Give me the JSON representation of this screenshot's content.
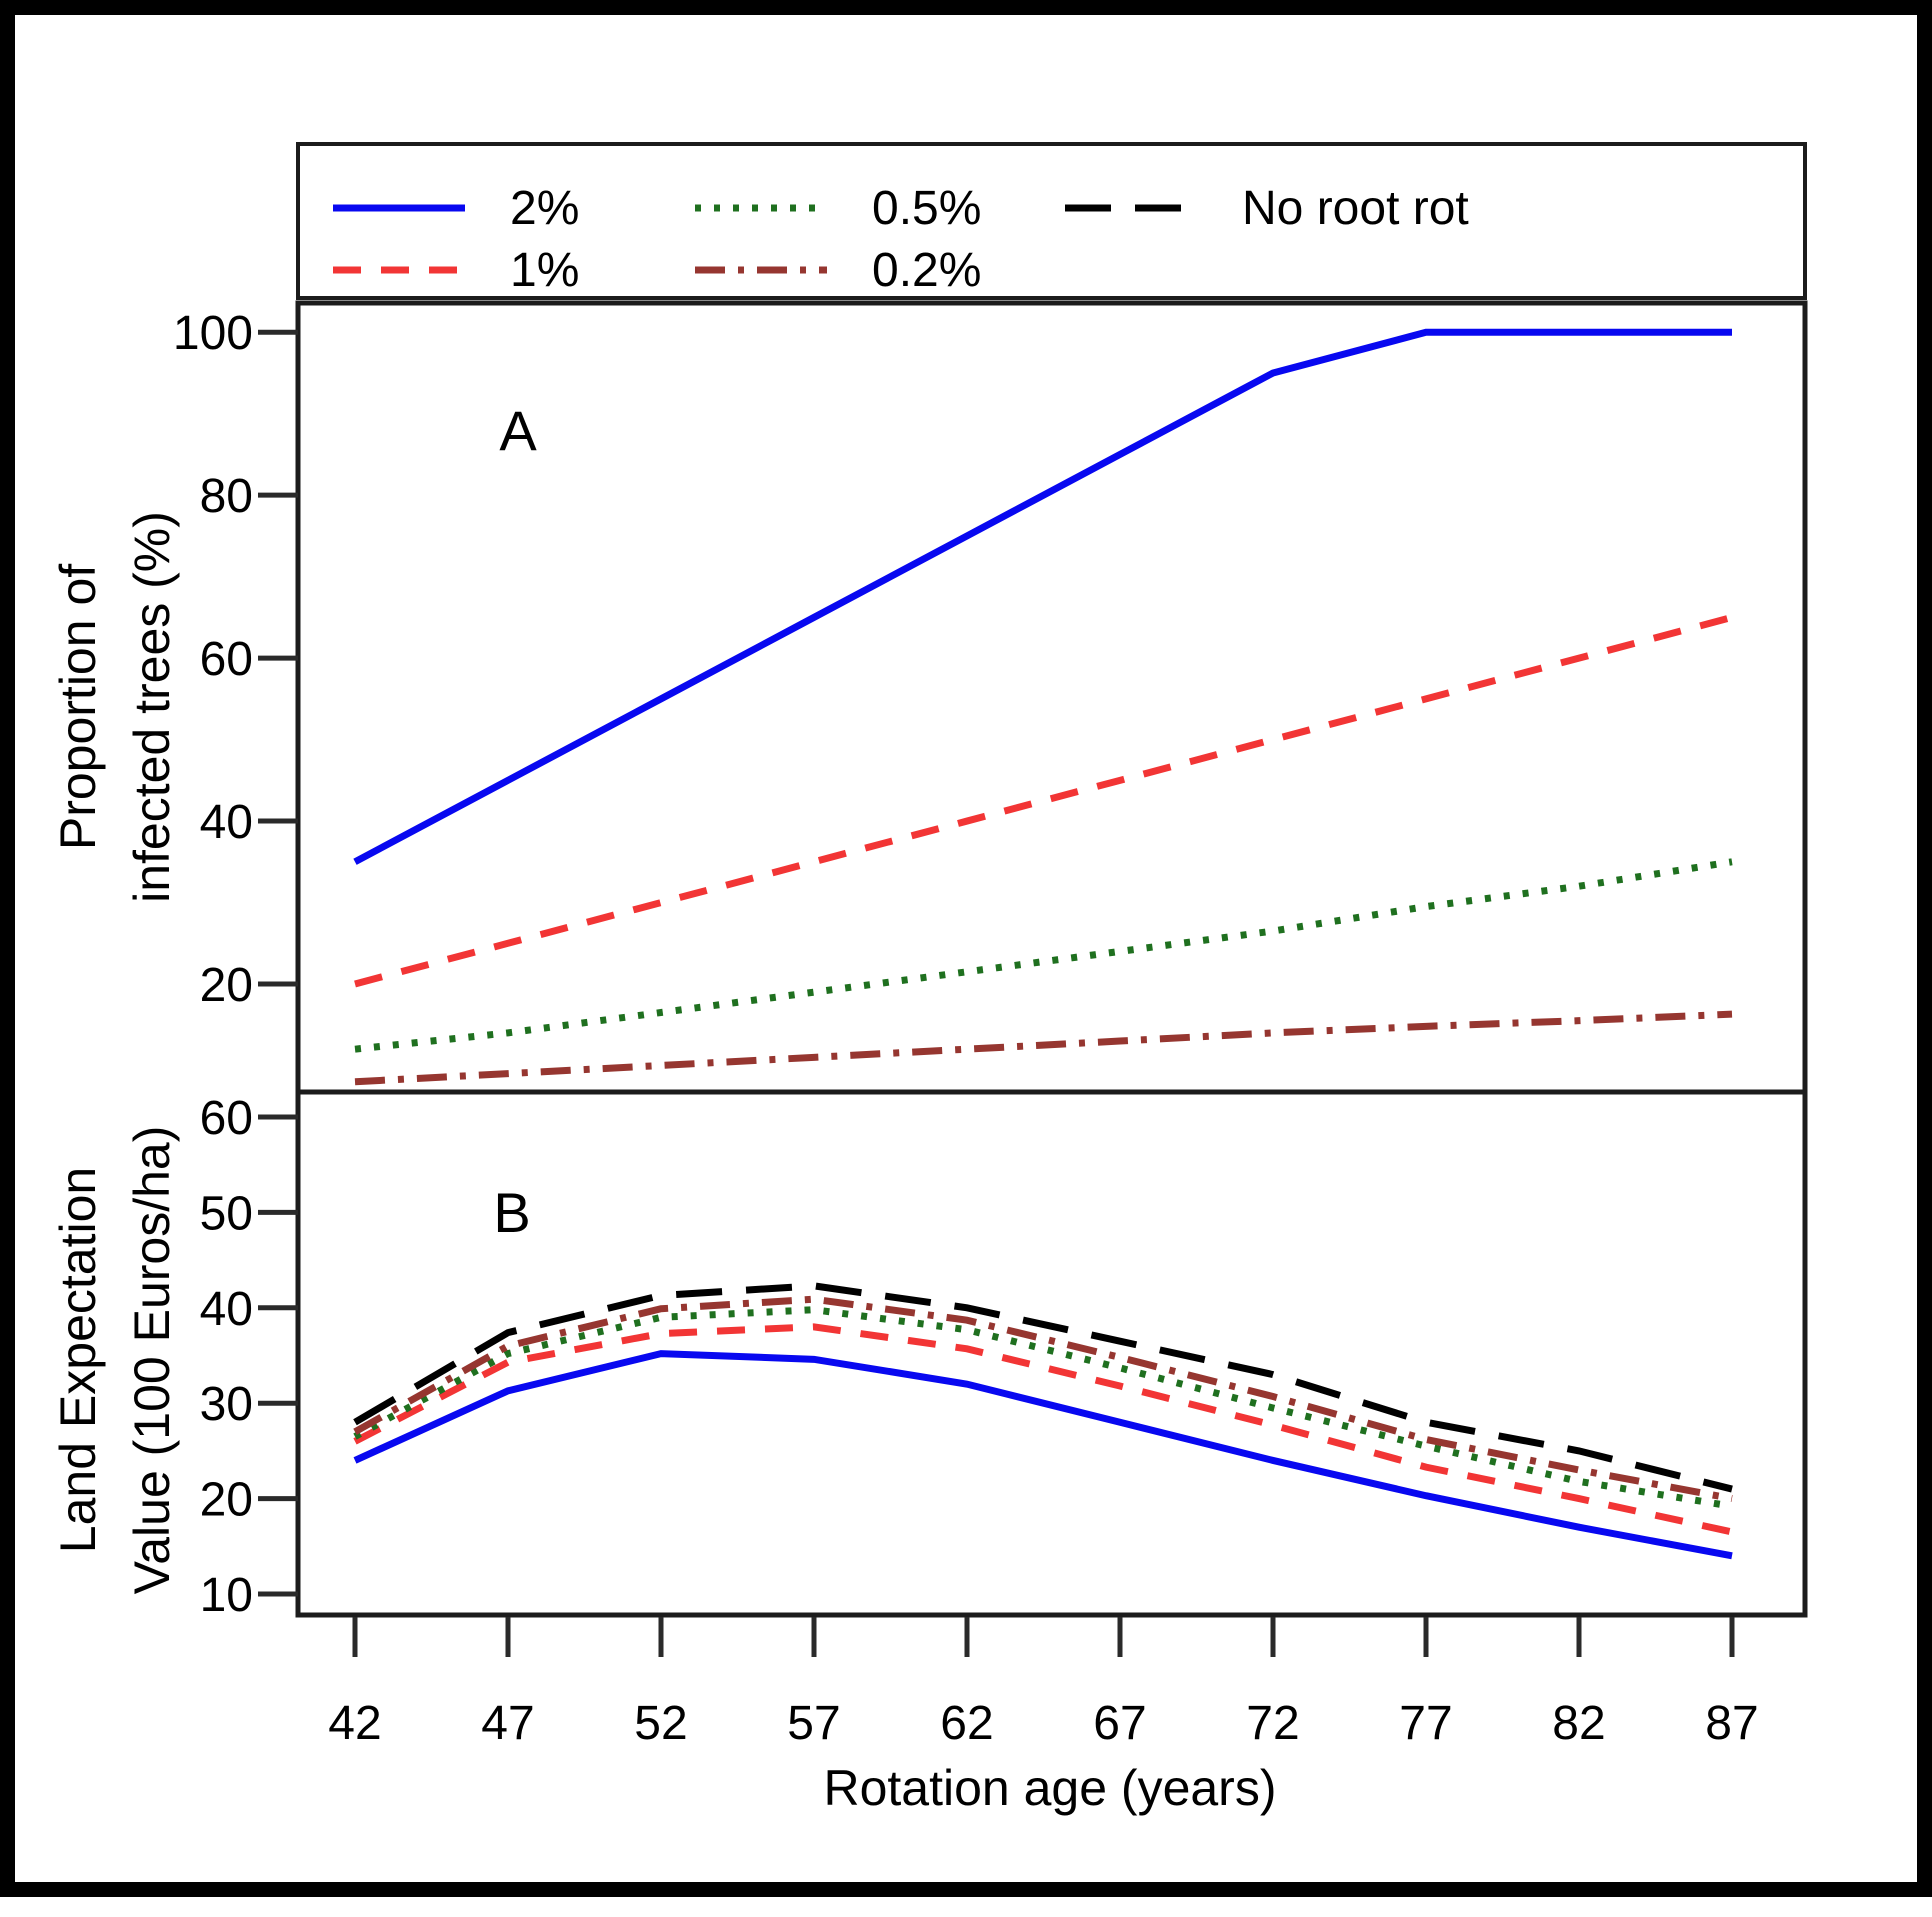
{
  "legend": {
    "entries": [
      {
        "label": "2%",
        "color": "#0808f0",
        "style": "solid"
      },
      {
        "label": "1%",
        "color": "#f23535",
        "style": "dashed"
      },
      {
        "label": "0.5%",
        "color": "#1f701f",
        "style": "dotted"
      },
      {
        "label": "0.2%",
        "color": "#963630",
        "style": "dashdot"
      },
      {
        "label": "No root rot",
        "color": "#000000",
        "style": "longdash"
      }
    ]
  },
  "figure": {
    "panel_a_label": "A",
    "panel_b_label": "B",
    "x_axis": {
      "title": "Rotation age (years)",
      "ticks": [
        42,
        47,
        52,
        57,
        62,
        67,
        72,
        77,
        82,
        87
      ]
    },
    "panel_a_y_axis": {
      "title_line1": "Proportion of",
      "title_line2": "infected trees (%)",
      "ticks": [
        100,
        80,
        60,
        40,
        20
      ]
    },
    "panel_b_y_axis": {
      "title_line1": "Land Expectation",
      "title_line2": "Value (100 Euros/ha)",
      "ticks": [
        60,
        50,
        40,
        30,
        20,
        10
      ]
    }
  },
  "chart_data": [
    {
      "type": "line",
      "panel": "A",
      "xlabel": "Rotation age (years)",
      "ylabel": "Proportion of infected trees (%)",
      "x": [
        42,
        47,
        52,
        57,
        62,
        67,
        72,
        77,
        82,
        87
      ],
      "xlim": [
        40.1,
        89.4
      ],
      "ylim": [
        6.5,
        103.5
      ],
      "grid": false,
      "legend_position": "top",
      "series": [
        {
          "name": "2%",
          "values": [
            35,
            45,
            55,
            65,
            75,
            85,
            95,
            100,
            100,
            100
          ]
        },
        {
          "name": "1%",
          "values": [
            20,
            25,
            30,
            35,
            40,
            45,
            50,
            55,
            60,
            65
          ]
        },
        {
          "name": "0.5%",
          "values": [
            12,
            14,
            16.5,
            19,
            21.5,
            24,
            26.5,
            29.5,
            32,
            35
          ]
        },
        {
          "name": "0.2%",
          "values": [
            8,
            9,
            10,
            11,
            12,
            13,
            14,
            14.8,
            15.5,
            16.3
          ]
        }
      ]
    },
    {
      "type": "line",
      "panel": "B",
      "xlabel": "Rotation age (years)",
      "ylabel": "Land Expectation Value (100 Euros/ha)",
      "x": [
        42,
        47,
        52,
        57,
        62,
        67,
        72,
        77,
        82,
        87
      ],
      "xlim": [
        40.1,
        89.4
      ],
      "ylim": [
        7.8,
        61.9
      ],
      "grid": false,
      "legend_position": "top",
      "series": [
        {
          "name": "2%",
          "values": [
            24,
            31.3,
            35.2,
            34.6,
            32,
            28,
            24,
            20.3,
            17,
            14
          ]
        },
        {
          "name": "1%",
          "values": [
            26,
            34.3,
            37.3,
            38,
            35.7,
            31.8,
            27.7,
            23.3,
            20,
            16.5
          ]
        },
        {
          "name": "0.5%",
          "values": [
            26.5,
            35.2,
            39,
            39.8,
            37.7,
            33.7,
            29.5,
            25.5,
            21.8,
            19.2
          ]
        },
        {
          "name": "0.2%",
          "values": [
            27,
            36,
            39.9,
            40.9,
            38.7,
            34.8,
            30.7,
            26.2,
            23,
            20
          ]
        },
        {
          "name": "No root rot",
          "values": [
            28,
            37.4,
            41.3,
            42.3,
            40,
            36.5,
            33,
            28,
            25,
            21
          ]
        }
      ]
    }
  ]
}
